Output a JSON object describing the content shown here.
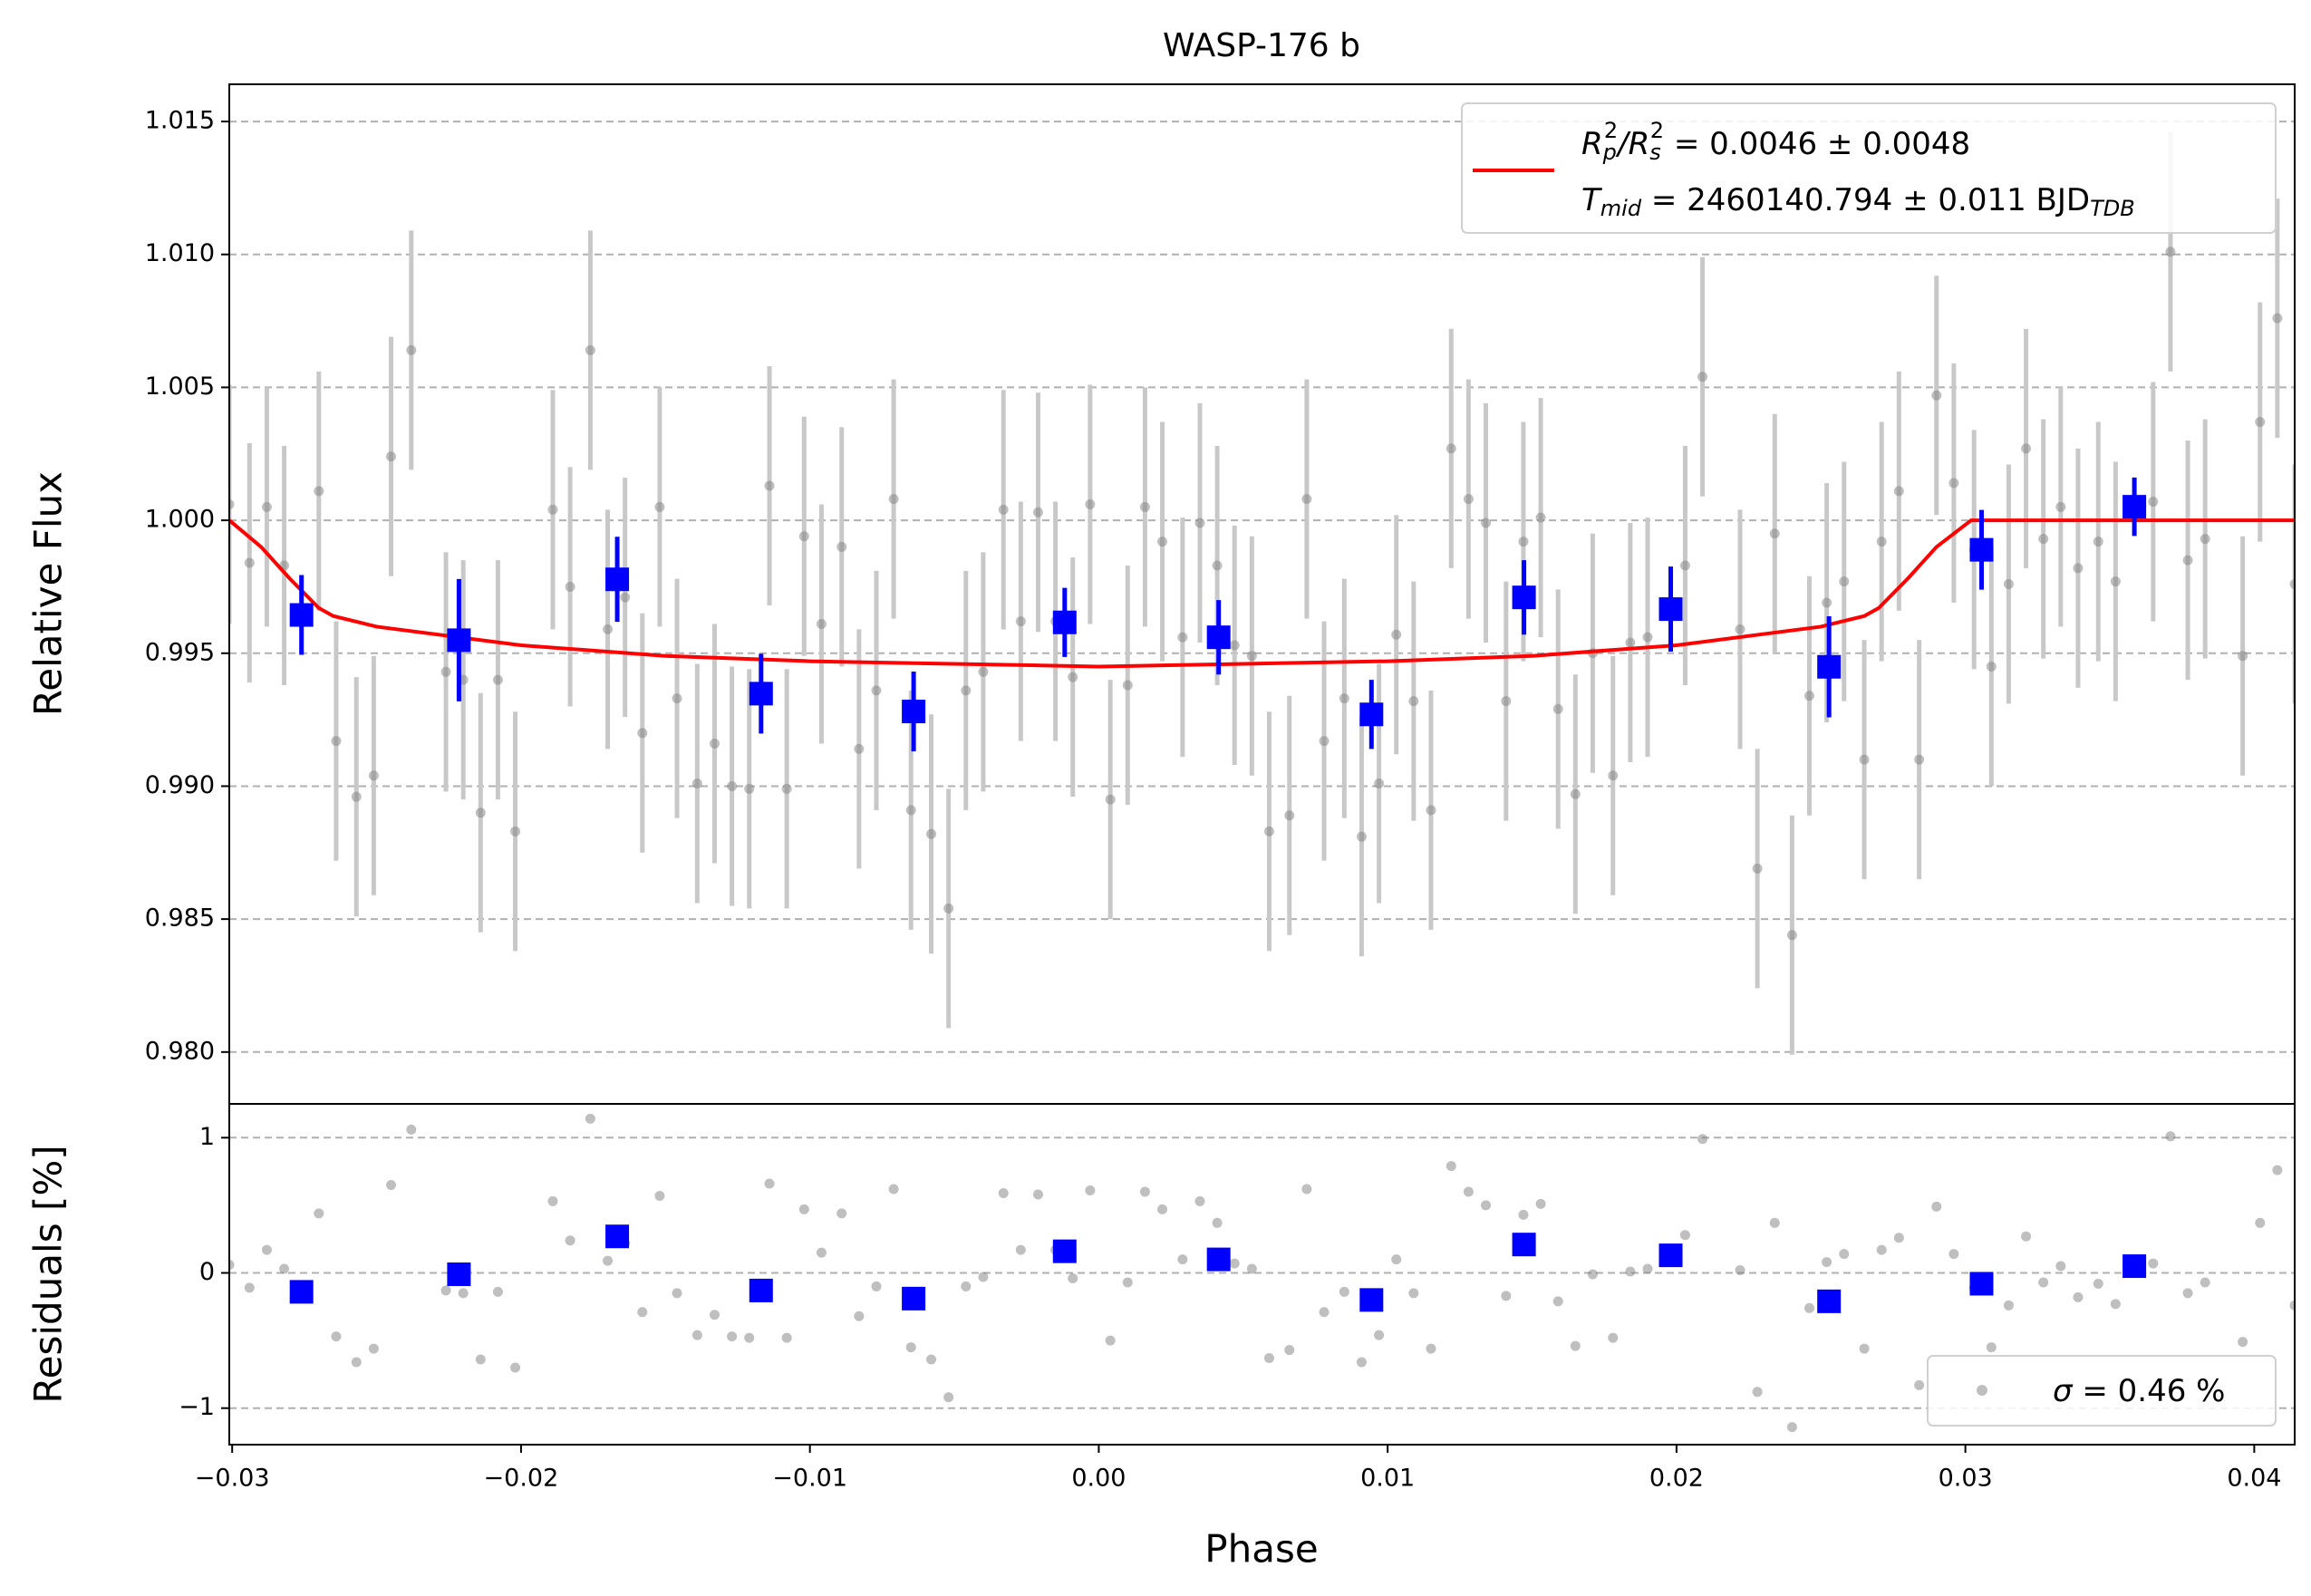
{
  "chart_data": [
    {
      "type": "scatter",
      "title": "WASP-176 b",
      "ylabel": "Relative Flux",
      "xlim": [
        -0.0301,
        0.0414
      ],
      "ylim": [
        0.97805,
        1.0164
      ],
      "grid": true,
      "yticks": [
        {
          "value": 0.98,
          "label": "0.980"
        },
        {
          "value": 0.985,
          "label": "0.985"
        },
        {
          "value": 0.99,
          "label": "0.990"
        },
        {
          "value": 0.995,
          "label": "0.995"
        },
        {
          "value": 1.0,
          "label": "1.000"
        },
        {
          "value": 1.005,
          "label": "1.005"
        },
        {
          "value": 1.01,
          "label": "1.010"
        },
        {
          "value": 1.015,
          "label": "1.015"
        }
      ],
      "legend": "upper right",
      "series": [
        {
          "type": "scatter",
          "marker": "circle",
          "color": "#808080",
          "error_color": "#c8c8c8",
          "error": 0.0045,
          "x": [
            -0.0301,
            -0.0294,
            -0.0288,
            -0.0282,
            -0.027,
            -0.0264,
            -0.0257,
            -0.0251,
            -0.0245,
            -0.0238,
            -0.0226,
            -0.022,
            -0.0214,
            -0.0208,
            -0.0202,
            -0.0189,
            -0.0183,
            -0.0176,
            -0.017,
            -0.0164,
            -0.0158,
            -0.0152,
            -0.0146,
            -0.0139,
            -0.0133,
            -0.0127,
            -0.0121,
            -0.0114,
            -0.0108,
            -0.0102,
            -0.0096,
            -0.0089,
            -0.0083,
            -0.0077,
            -0.0071,
            -0.0065,
            -0.0058,
            -0.0052,
            -0.0046,
            -0.004,
            -0.0033,
            -0.0027,
            -0.0021,
            -0.0015,
            -0.0009,
            -0.0003,
            0.0004,
            0.001,
            0.0016,
            0.0022,
            0.0029,
            0.0035,
            0.0041,
            0.0047,
            0.0053,
            0.0059,
            0.0066,
            0.0072,
            0.0078,
            0.0085,
            0.0091,
            0.0097,
            0.0103,
            0.0109,
            0.0115,
            0.0122,
            0.0128,
            0.0134,
            0.0141,
            0.0147,
            0.0153,
            0.0159,
            0.0165,
            0.0171,
            0.0178,
            0.0184,
            0.019,
            0.0203,
            0.0209,
            0.0222,
            0.0228,
            0.0234,
            0.024,
            0.0246,
            0.0252,
            0.0258,
            0.0265,
            0.0271,
            0.0277,
            0.0284,
            0.029,
            0.0296,
            0.0303,
            0.0309,
            0.0315,
            0.0321,
            0.0327,
            0.0333,
            0.0339,
            0.0346,
            0.0352,
            0.0365,
            0.0371,
            0.0377,
            0.0383,
            0.0396,
            0.0402,
            0.0408,
            0.0414
          ],
          "values": [
            1.0006,
            0.9984,
            1.0005,
            0.9983,
            1.0011,
            0.9917,
            0.9896,
            0.9904,
            1.0024,
            1.0064,
            0.9943,
            0.994,
            0.989,
            0.994,
            0.9883,
            1.0004,
            0.9975,
            1.0064,
            0.9959,
            0.9971,
            0.992,
            1.0005,
            0.9933,
            0.9901,
            0.9916,
            0.99,
            0.9899,
            1.0013,
            0.9899,
            0.9994,
            0.9961,
            0.999,
            0.9914,
            0.9936,
            1.0008,
            0.9891,
            0.9882,
            0.9854,
            0.9936,
            0.9943,
            1.0004,
            0.9962,
            1.0003,
            0.9962,
            0.9941,
            1.0006,
            0.9895,
            0.9938,
            1.0005,
            0.9992,
            0.9956,
            0.9999,
            0.9983,
            0.9953,
            0.9949,
            0.9883,
            0.9889,
            1.0008,
            0.9917,
            0.9933,
            0.9881,
            0.9901,
            0.9957,
            0.9932,
            0.9891,
            1.0027,
            1.0008,
            0.9999,
            0.9932,
            0.9992,
            1.0001,
            0.9929,
            0.9897,
            0.995,
            0.9904,
            0.9954,
            0.9956,
            0.9983,
            1.0054,
            0.9959,
            0.9869,
            0.9995,
            0.9844,
            0.9934,
            0.9969,
            0.9977,
            0.991,
            0.9992,
            1.0011,
            0.991,
            1.0047,
            1.0014,
            0.9989,
            0.9945,
            0.9976,
            1.0027,
            0.9993,
            1.0005,
            0.9982,
            0.9992,
            0.9977,
            1.0007,
            1.0101,
            0.9985,
            0.9993,
            0.9949,
            1.0037,
            1.0076,
            0.9976
          ]
        },
        {
          "type": "line",
          "color": "#ff0000",
          "label_parts": [
            [
              "R",
              "p",
              "2",
              "/",
              "R",
              "s",
              "2",
              " = 0.0046 ± 0.0048"
            ],
            [
              "T",
              "mid",
              " = 2460140.794 ± 0.011 BJD",
              "TDB"
            ]
          ],
          "x": [
            -0.0301,
            -0.029,
            -0.028,
            -0.027,
            -0.0265,
            -0.025,
            -0.02,
            -0.015,
            -0.01,
            -0.005,
            0.0,
            0.005,
            0.01,
            0.015,
            0.02,
            0.025,
            0.0265,
            0.027,
            0.028,
            0.029,
            0.0302,
            0.0414
          ],
          "values": [
            1.0,
            0.999,
            0.9978,
            0.9967,
            0.9964,
            0.996,
            0.9953,
            0.9949,
            0.9947,
            0.9946,
            0.9945,
            0.9946,
            0.9947,
            0.9949,
            0.9953,
            0.996,
            0.9964,
            0.9967,
            0.9978,
            0.999,
            1.0,
            1.0
          ]
        },
        {
          "type": "scatter",
          "marker": "square",
          "color": "#0000ff",
          "error_color": "#0000ff",
          "x": [
            -0.0276,
            -0.02215,
            -0.01667,
            -0.01169,
            -0.00641,
            -0.00118,
            0.00415,
            0.00944,
            0.01472,
            0.0198,
            0.02528,
            0.03056,
            0.03585
          ],
          "values": [
            0.99644,
            0.99549,
            0.99778,
            0.99348,
            0.99281,
            0.99616,
            0.9956,
            0.9927,
            0.9971,
            0.99666,
            0.99449,
            0.99889,
            1.00051
          ],
          "errors": [
            0.0015,
            0.0023,
            0.0016,
            0.0015,
            0.0015,
            0.0013,
            0.0014,
            0.0013,
            0.0014,
            0.0016,
            0.0019,
            0.0015,
            0.0011
          ]
        }
      ]
    },
    {
      "type": "scatter",
      "xlabel": "Phase",
      "ylabel": "Residuals [%]",
      "xlim": [
        -0.0301,
        0.0414
      ],
      "ylim": [
        -1.27,
        1.25
      ],
      "grid": true,
      "xticks": [
        {
          "value": -0.03,
          "label": "−0.03"
        },
        {
          "value": -0.02,
          "label": "−0.02"
        },
        {
          "value": -0.01,
          "label": "−0.01"
        },
        {
          "value": 0,
          "label": "0.00"
        },
        0.01,
        0.02,
        0.03,
        0.04
      ],
      "yticks": [
        {
          "value": -1,
          "label": "−1"
        },
        0,
        1
      ],
      "legend": "lower right",
      "series": [
        {
          "type": "scatter",
          "marker": "circle",
          "color": "#808080",
          "label_parts": [
            "σ",
            " = 0.46 %"
          ],
          "x": [
            -0.0301,
            -0.0294,
            -0.0288,
            -0.0282,
            -0.027,
            -0.0264,
            -0.0257,
            -0.0251,
            -0.0245,
            -0.0238,
            -0.0226,
            -0.022,
            -0.0214,
            -0.0208,
            -0.0202,
            -0.0189,
            -0.0183,
            -0.0176,
            -0.017,
            -0.0164,
            -0.0158,
            -0.0152,
            -0.0146,
            -0.0139,
            -0.0133,
            -0.0127,
            -0.0121,
            -0.0114,
            -0.0108,
            -0.0102,
            -0.0096,
            -0.0089,
            -0.0083,
            -0.0077,
            -0.0071,
            -0.0065,
            -0.0058,
            -0.0052,
            -0.0046,
            -0.004,
            -0.0033,
            -0.0027,
            -0.0021,
            -0.0015,
            -0.0009,
            -0.0003,
            0.0004,
            0.001,
            0.0016,
            0.0022,
            0.0029,
            0.0035,
            0.0041,
            0.0047,
            0.0053,
            0.0059,
            0.0066,
            0.0072,
            0.0078,
            0.0085,
            0.0091,
            0.0097,
            0.0103,
            0.0109,
            0.0115,
            0.0122,
            0.0128,
            0.0134,
            0.0141,
            0.0147,
            0.0153,
            0.0159,
            0.0165,
            0.0171,
            0.0178,
            0.0184,
            0.019,
            0.0203,
            0.0209,
            0.0222,
            0.0228,
            0.0234,
            0.024,
            0.0246,
            0.0252,
            0.0258,
            0.0265,
            0.0271,
            0.0277,
            0.0284,
            0.029,
            0.0296,
            0.0303,
            0.0309,
            0.0315,
            0.0321,
            0.0327,
            0.0333,
            0.0339,
            0.0346,
            0.0352,
            0.0365,
            0.0371,
            0.0377,
            0.0383,
            0.0396,
            0.0402,
            0.0408,
            0.0414
          ],
          "values": [
            0.06,
            -0.11,
            0.17,
            0.03,
            0.44,
            -0.47,
            -0.66,
            -0.56,
            0.65,
            1.06,
            -0.13,
            -0.15,
            -0.64,
            -0.14,
            -0.7,
            0.53,
            0.24,
            1.14,
            0.09,
            0.22,
            -0.29,
            0.57,
            -0.15,
            -0.46,
            -0.31,
            -0.47,
            -0.48,
            0.66,
            -0.48,
            0.47,
            0.15,
            0.44,
            -0.32,
            -0.1,
            0.62,
            -0.55,
            -0.64,
            -0.92,
            -0.1,
            -0.03,
            0.59,
            0.17,
            0.58,
            0.17,
            -0.04,
            0.61,
            -0.5,
            -0.07,
            0.6,
            0.47,
            0.1,
            0.53,
            0.37,
            0.07,
            0.03,
            -0.63,
            -0.57,
            0.62,
            -0.29,
            -0.14,
            -0.66,
            -0.46,
            0.1,
            -0.15,
            -0.56,
            0.79,
            0.6,
            0.5,
            -0.17,
            0.43,
            0.51,
            -0.21,
            -0.54,
            -0.01,
            -0.48,
            0.01,
            0.03,
            0.28,
            0.99,
            0.02,
            -0.88,
            0.37,
            -1.14,
            -0.26,
            0.08,
            0.14,
            -0.56,
            0.17,
            0.26,
            -0.83,
            0.49,
            0.14,
            -0.11,
            -0.55,
            -0.24,
            0.27,
            -0.07,
            0.05,
            -0.18,
            -0.08,
            -0.23,
            0.07,
            1.01,
            -0.15,
            -0.07,
            -0.51,
            0.37,
            0.76,
            -0.24
          ]
        },
        {
          "type": "scatter",
          "marker": "square",
          "color": "#0000ff",
          "x": [
            -0.0276,
            -0.02215,
            -0.01667,
            -0.01169,
            -0.00641,
            -0.00118,
            0.00415,
            0.00944,
            0.01472,
            0.0198,
            0.02528,
            0.03056,
            0.03585
          ],
          "values": [
            -0.14,
            -0.01,
            0.27,
            -0.13,
            -0.19,
            0.16,
            0.1,
            -0.2,
            0.21,
            0.13,
            -0.21,
            -0.08,
            0.05
          ]
        }
      ]
    }
  ]
}
